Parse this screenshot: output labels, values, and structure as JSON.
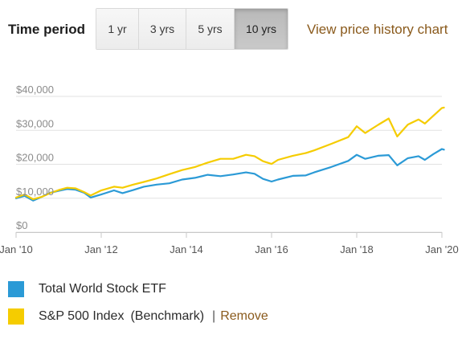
{
  "time_period": {
    "label": "Time period",
    "options": [
      "1 yr",
      "3 yrs",
      "5 yrs",
      "10 yrs"
    ],
    "selected": "10 yrs"
  },
  "view_link": "View price history chart",
  "legend": {
    "items": [
      {
        "name": "Total World Stock ETF",
        "color": "#2b9ad6"
      },
      {
        "name": "S&P 500 Index",
        "suffix": "(Benchmark)",
        "color": "#f5cc00",
        "separator": "|",
        "remove_label": "Remove"
      }
    ]
  },
  "chart_data": {
    "type": "line",
    "xlim": [
      2010,
      2020
    ],
    "ylim": [
      0,
      40000
    ],
    "x_ticks": [
      "Jan '10",
      "Jan '12",
      "Jan '14",
      "Jan '16",
      "Jan '18",
      "Jan '20"
    ],
    "x_tick_values": [
      2010,
      2012,
      2014,
      2016,
      2018,
      2020
    ],
    "y_ticks": [
      "$0",
      "$10,000",
      "$20,000",
      "$30,000",
      "$40,000"
    ],
    "y_tick_values": [
      0,
      10000,
      20000,
      30000,
      40000
    ],
    "grid": true,
    "series": [
      {
        "name": "Total World Stock ETF",
        "color": "#2b9ad6",
        "points": [
          [
            2010.0,
            10000
          ],
          [
            2010.2,
            10700
          ],
          [
            2010.4,
            9300
          ],
          [
            2010.6,
            10400
          ],
          [
            2010.8,
            11600
          ],
          [
            2011.0,
            12200
          ],
          [
            2011.2,
            12700
          ],
          [
            2011.4,
            12500
          ],
          [
            2011.6,
            11600
          ],
          [
            2011.75,
            10200
          ],
          [
            2012.0,
            11100
          ],
          [
            2012.3,
            12300
          ],
          [
            2012.5,
            11500
          ],
          [
            2012.75,
            12400
          ],
          [
            2013.0,
            13400
          ],
          [
            2013.3,
            14000
          ],
          [
            2013.6,
            14400
          ],
          [
            2013.9,
            15500
          ],
          [
            2014.2,
            16000
          ],
          [
            2014.5,
            16900
          ],
          [
            2014.8,
            16500
          ],
          [
            2015.1,
            17000
          ],
          [
            2015.4,
            17600
          ],
          [
            2015.6,
            17200
          ],
          [
            2015.8,
            15700
          ],
          [
            2016.0,
            14900
          ],
          [
            2016.15,
            15500
          ],
          [
            2016.5,
            16600
          ],
          [
            2016.8,
            16700
          ],
          [
            2017.0,
            17600
          ],
          [
            2017.4,
            19200
          ],
          [
            2017.8,
            21000
          ],
          [
            2018.0,
            22800
          ],
          [
            2018.2,
            21600
          ],
          [
            2018.5,
            22500
          ],
          [
            2018.75,
            22700
          ],
          [
            2018.95,
            19700
          ],
          [
            2019.2,
            21800
          ],
          [
            2019.45,
            22400
          ],
          [
            2019.6,
            21300
          ],
          [
            2019.8,
            23000
          ],
          [
            2020.0,
            24500
          ],
          [
            2020.05,
            24300
          ]
        ]
      },
      {
        "name": "S&P 500 Index",
        "color": "#f5cc00",
        "points": [
          [
            2010.0,
            10200
          ],
          [
            2010.2,
            11100
          ],
          [
            2010.4,
            9700
          ],
          [
            2010.6,
            10400
          ],
          [
            2010.8,
            11500
          ],
          [
            2011.0,
            12400
          ],
          [
            2011.2,
            13100
          ],
          [
            2011.4,
            12900
          ],
          [
            2011.6,
            11800
          ],
          [
            2011.75,
            10800
          ],
          [
            2012.0,
            12300
          ],
          [
            2012.3,
            13400
          ],
          [
            2012.5,
            13100
          ],
          [
            2012.75,
            14000
          ],
          [
            2013.0,
            14800
          ],
          [
            2013.3,
            15800
          ],
          [
            2013.6,
            17100
          ],
          [
            2013.9,
            18300
          ],
          [
            2014.2,
            19200
          ],
          [
            2014.5,
            20500
          ],
          [
            2014.8,
            21600
          ],
          [
            2015.1,
            21600
          ],
          [
            2015.4,
            22800
          ],
          [
            2015.6,
            22400
          ],
          [
            2015.8,
            20900
          ],
          [
            2016.0,
            20100
          ],
          [
            2016.15,
            21300
          ],
          [
            2016.5,
            22500
          ],
          [
            2016.8,
            23300
          ],
          [
            2017.0,
            24100
          ],
          [
            2017.4,
            26000
          ],
          [
            2017.8,
            28000
          ],
          [
            2018.0,
            31200
          ],
          [
            2018.2,
            29200
          ],
          [
            2018.5,
            31600
          ],
          [
            2018.75,
            33500
          ],
          [
            2018.95,
            28200
          ],
          [
            2019.2,
            31700
          ],
          [
            2019.45,
            33200
          ],
          [
            2019.6,
            32000
          ],
          [
            2019.8,
            34300
          ],
          [
            2020.0,
            36600
          ],
          [
            2020.05,
            36700
          ]
        ]
      }
    ]
  }
}
